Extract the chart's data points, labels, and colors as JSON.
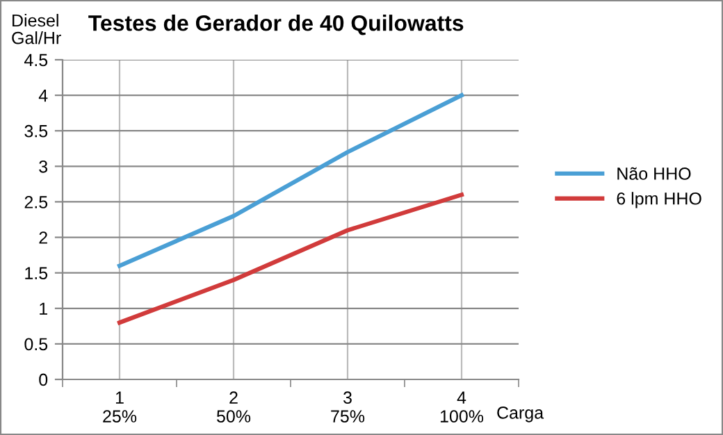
{
  "chart_data": {
    "type": "line",
    "title": "Testes de Gerador de 40 Quilowatts",
    "ylabel": "Diesel\nGal/Hr",
    "xlabel": "Carga",
    "categories": [
      "1\n25%",
      "2\n50%",
      "3\n75%",
      "4\n100%"
    ],
    "series": [
      {
        "name": "Não HHO",
        "color": "#4a9fd5",
        "values": [
          1.6,
          2.3,
          3.2,
          4
        ]
      },
      {
        "name": "6 lpm HHO",
        "color": "#d13b3b",
        "values": [
          0.8,
          1.4,
          2.1,
          2.6
        ]
      }
    ],
    "ylim": [
      0,
      4.5
    ],
    "yticks": [
      0,
      0.5,
      1,
      1.5,
      2,
      2.5,
      3,
      3.5,
      4,
      4.5
    ],
    "grid": true,
    "legend": "right",
    "marker": "none",
    "line_style": "solid"
  }
}
